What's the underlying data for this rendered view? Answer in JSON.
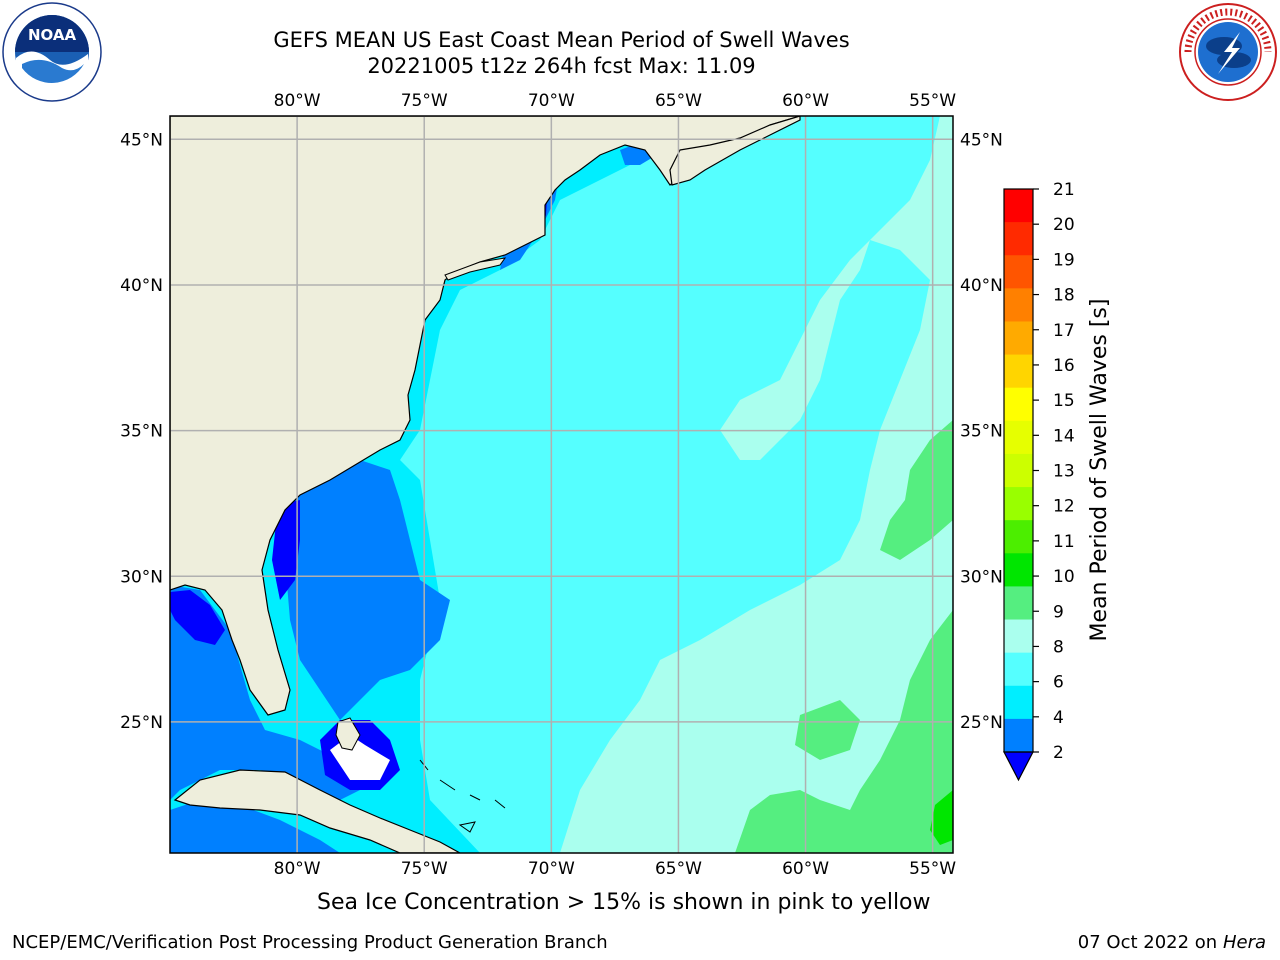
{
  "title_line1": "GEFS MEAN US East Coast Mean Period of Swell Waves",
  "title_line2": "20221005 t12z 264h fcst   Max: 11.09",
  "footer_note": "Sea Ice Concentration > 15% is shown in pink to yellow",
  "credit": "NCEP/EMC/Verification Post Processing Product Generation Branch",
  "date_text": "07 Oct 2022 on",
  "machine": "Hera",
  "logos": {
    "left": "noaa-logo",
    "left_text": "NOAA",
    "right": "nws-logo"
  },
  "map": {
    "lon_labels": [
      "80°W",
      "75°W",
      "70°W",
      "65°W",
      "60°W",
      "55°W"
    ],
    "lat_labels": [
      "45°N",
      "40°N",
      "35°N",
      "30°N",
      "25°N"
    ],
    "lon_values": [
      -80,
      -75,
      -70,
      -65,
      -60,
      -55
    ],
    "lat_values": [
      45,
      40,
      35,
      30,
      25
    ],
    "lon_range": [
      -85,
      -54.2
    ],
    "lat_range": [
      20.5,
      45.8
    ],
    "colors": {
      "land": "#eeeedc",
      "ocean_base": "#55ffff",
      "grid": "#b0b0b0"
    }
  },
  "colorbar": {
    "label": "Mean Period of Swell Waves [s]",
    "ticks": [
      "21",
      "20",
      "19",
      "18",
      "17",
      "16",
      "15",
      "14",
      "13",
      "12",
      "11",
      "10",
      "9",
      "8",
      "6",
      "4",
      "2"
    ],
    "colors": [
      "#ff0000",
      "#ff2a00",
      "#ff5500",
      "#ff8000",
      "#ffaa00",
      "#ffd500",
      "#ffff00",
      "#e6ff00",
      "#ccff00",
      "#99ff00",
      "#4cee00",
      "#00e600",
      "#55ee80",
      "#aaffee",
      "#55ffff",
      "#00eeff",
      "#0080ff"
    ],
    "under_color": "#0000ff"
  }
}
